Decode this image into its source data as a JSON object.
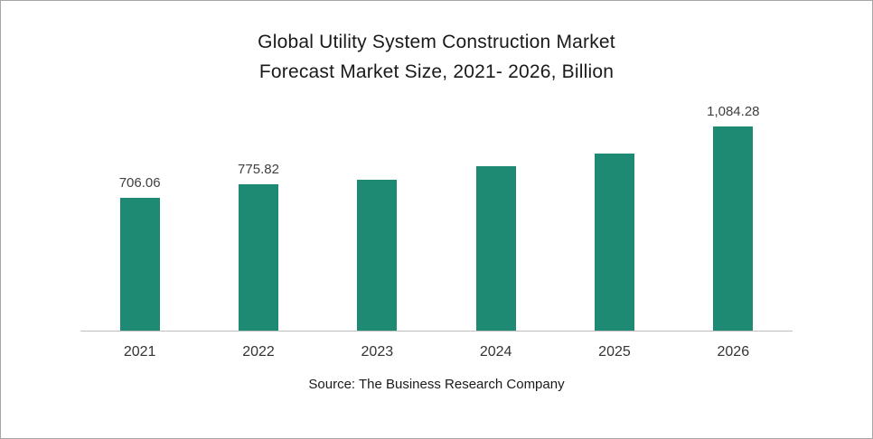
{
  "chart_data": {
    "type": "bar",
    "title": "Global Utility System Construction Market\nForecast Market Size, 2021- 2026, Billion",
    "categories": [
      "2021",
      "2022",
      "2023",
      "2024",
      "2025",
      "2026"
    ],
    "values": [
      706.06,
      775.82,
      802,
      873,
      941,
      1084.28
    ],
    "data_labels": [
      "706.06",
      "775.82",
      "",
      "",
      "",
      "1,084.28"
    ],
    "xlabel": "",
    "ylabel": "",
    "ylim": [
      0,
      1150
    ],
    "grid": false,
    "legend": "none",
    "bar_color": "#1E8A73",
    "axis_line_color": "#BFBFBF",
    "source": "Source: The Business Research Company"
  }
}
